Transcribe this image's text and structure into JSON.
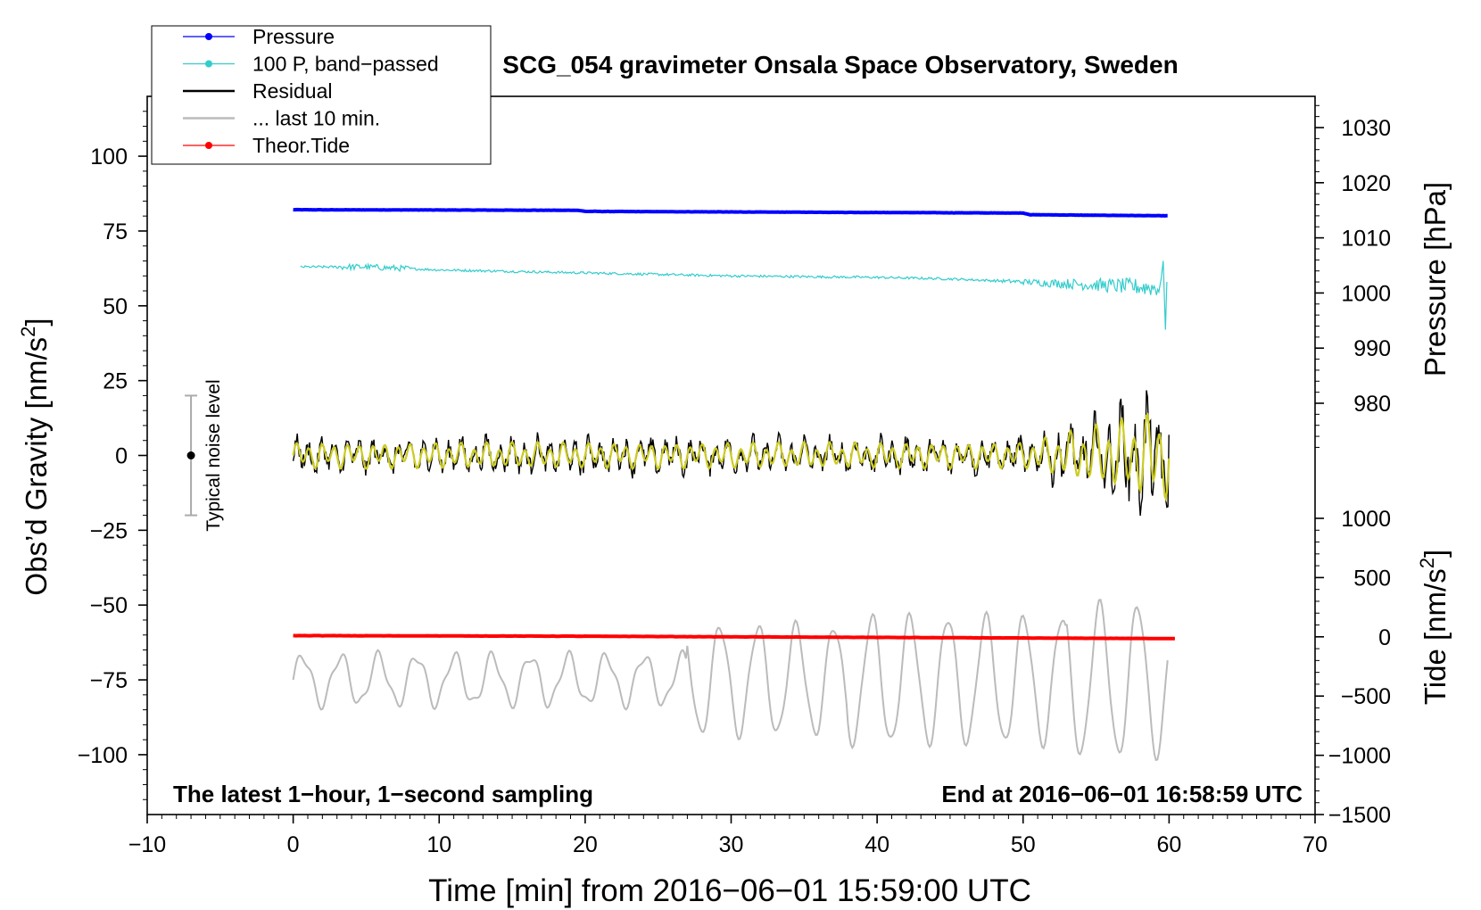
{
  "chart_data": {
    "type": "line",
    "title": "SCG_054 gravimeter Onsala Space Observatory, Sweden",
    "xlabel": "Time [min] from 2016−06−01 15:59:00 UTC",
    "ylabel_left": "Obs’d Gravity [nm/s",
    "ylabel_left_sup": "2",
    "ylabel_left_end": "]",
    "ylabel_right_pressure": "Pressure [hPa]",
    "ylabel_right_tide": "Tide [nm/s",
    "ylabel_right_tide_sup": "2",
    "ylabel_right_tide_end": "]",
    "xlim": [
      -10,
      70
    ],
    "ylim_left": [
      -120,
      120
    ],
    "pressure_range": [
      970,
      1035
    ],
    "tide_range": [
      -1500,
      1000
    ],
    "x_ticks": [
      "−10",
      "0",
      "10",
      "20",
      "30",
      "40",
      "50",
      "60",
      "70"
    ],
    "x_tick_values": [
      -10,
      0,
      10,
      20,
      30,
      40,
      50,
      60,
      70
    ],
    "y_left_ticks": [
      "100",
      "75",
      "50",
      "25",
      "0",
      "−25",
      "−50",
      "−75",
      "−100"
    ],
    "y_left_tick_values": [
      100,
      75,
      50,
      25,
      0,
      -25,
      -50,
      -75,
      -100
    ],
    "pressure_ticks": [
      "1030",
      "1020",
      "1010",
      "1000",
      "990",
      "980"
    ],
    "pressure_tick_values": [
      1030,
      1020,
      1010,
      1000,
      990,
      980
    ],
    "tide_ticks": [
      "1000",
      "500",
      "0",
      "−500",
      "−1000",
      "−1500"
    ],
    "tide_tick_values": [
      1000,
      500,
      0,
      -500,
      -1000,
      -1500
    ],
    "legend": [
      {
        "label": "Pressure",
        "color": "#0000ff",
        "marker": true
      },
      {
        "label": "100 P, band−passed",
        "color": "#33cccc",
        "marker": true
      },
      {
        "label": "Residual",
        "color": "#000000",
        "marker": false
      },
      {
        "label": "... last 10 min.",
        "color": "#bbbbbb",
        "marker": false
      },
      {
        "label": "Theor.Tide",
        "color": "#ff0000",
        "marker": true
      }
    ],
    "noise_label": "Typical noise level",
    "noise_bar": {
      "x": -7,
      "low": -20,
      "high": 20,
      "center": 0
    },
    "annotation_left": "The latest 1−hour, 1−second sampling",
    "annotation_right": "End at 2016−06−01 16:58:59 UTC",
    "series": [
      {
        "name": "Pressure",
        "color": "#0000ff",
        "axis": "pressure",
        "x": [
          0,
          19.5,
          20,
          30,
          40,
          50,
          50.5,
          55,
          60
        ],
        "y": [
          1015.1,
          1015.0,
          1014.8,
          1014.7,
          1014.6,
          1014.5,
          1014.2,
          1014.1,
          1014.0
        ]
      },
      {
        "name": "100 P, band−passed",
        "color": "#33cccc",
        "axis": "left",
        "x": [
          0.5,
          5,
          10,
          20,
          30,
          40,
          45,
          50,
          55,
          59.5
        ],
        "y": [
          63,
          63,
          62,
          61,
          60,
          59.5,
          59,
          58,
          57,
          56
        ]
      },
      {
        "name": "Residual",
        "color": "#000000",
        "axis": "left",
        "x": [
          0,
          60
        ],
        "y": [
          0,
          0
        ]
      },
      {
        "name": "... last 10 min.",
        "color": "#bbbbbb",
        "axis": "left",
        "x": [
          0,
          60
        ],
        "y": [
          -75,
          -75
        ]
      },
      {
        "name": "Theor.Tide",
        "color": "#ff0000",
        "axis": "tide",
        "x": [
          0,
          10,
          20,
          30,
          40,
          50,
          60.5
        ],
        "y": [
          10,
          8,
          5,
          0,
          -5,
          -10,
          -15
        ]
      }
    ]
  }
}
